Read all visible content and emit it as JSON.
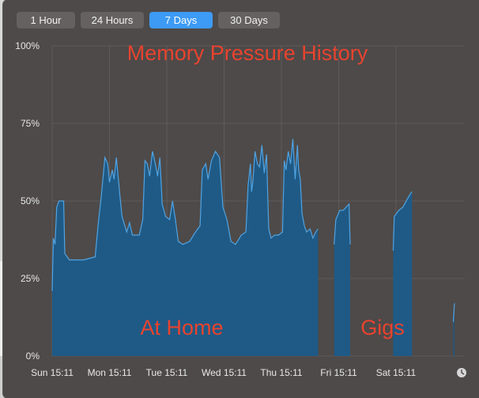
{
  "tabs": [
    {
      "label": "1 Hour",
      "active": false
    },
    {
      "label": "24 Hours",
      "active": false
    },
    {
      "label": "7 Days",
      "active": true
    },
    {
      "label": "30 Days",
      "active": false
    }
  ],
  "annotations": {
    "title": "Memory Pressure History",
    "at_home": "At Home",
    "gigs": "Gigs"
  },
  "colors": {
    "fill": "#1f5a86",
    "line": "#4fa3e3",
    "annotation": "#e8432f",
    "active_tab": "#3d9bf5",
    "background": "#4d4a49"
  },
  "clock_icon": "clock-icon",
  "chart_data": {
    "type": "area",
    "y_ticks": [
      "100%",
      "75%",
      "50%",
      "25%",
      "0%"
    ],
    "x_ticks": [
      "Sun 15:11",
      "Mon 15:11",
      "Tue 15:11",
      "Wed 15:11",
      "Thu 15:11",
      "Fri 15:11",
      "Sat 15:11"
    ],
    "ylim": [
      0,
      100
    ],
    "xlim_days": [
      0,
      7.2
    ],
    "grid": true,
    "series": [
      {
        "segments": [
          [
            [
              0.0,
              21
            ],
            [
              0.02,
              38
            ],
            [
              0.05,
              36
            ],
            [
              0.08,
              48
            ],
            [
              0.12,
              50
            ],
            [
              0.2,
              50
            ],
            [
              0.22,
              33
            ],
            [
              0.3,
              31
            ],
            [
              0.4,
              31
            ],
            [
              0.55,
              31
            ],
            [
              0.75,
              32
            ],
            [
              0.8,
              42
            ],
            [
              0.86,
              52
            ],
            [
              0.92,
              64
            ],
            [
              0.97,
              62
            ],
            [
              1.0,
              56
            ],
            [
              1.05,
              60
            ],
            [
              1.08,
              57
            ],
            [
              1.12,
              64
            ],
            [
              1.18,
              52
            ],
            [
              1.22,
              45
            ],
            [
              1.3,
              40
            ],
            [
              1.35,
              43
            ],
            [
              1.4,
              39
            ],
            [
              1.52,
              39
            ],
            [
              1.58,
              44
            ],
            [
              1.62,
              63
            ],
            [
              1.66,
              62
            ],
            [
              1.7,
              58
            ],
            [
              1.75,
              66
            ],
            [
              1.8,
              62
            ],
            [
              1.84,
              58
            ],
            [
              1.88,
              64
            ],
            [
              1.92,
              49
            ],
            [
              1.98,
              45
            ],
            [
              2.05,
              44
            ],
            [
              2.1,
              50
            ],
            [
              2.15,
              44
            ],
            [
              2.2,
              37
            ],
            [
              2.28,
              36
            ],
            [
              2.4,
              37
            ],
            [
              2.5,
              40
            ],
            [
              2.58,
              42
            ],
            [
              2.62,
              60
            ],
            [
              2.68,
              62
            ],
            [
              2.72,
              57
            ],
            [
              2.78,
              63
            ],
            [
              2.85,
              66
            ],
            [
              2.92,
              64
            ],
            [
              2.98,
              48
            ],
            [
              3.05,
              44
            ],
            [
              3.12,
              37
            ],
            [
              3.2,
              36
            ],
            [
              3.3,
              39
            ],
            [
              3.38,
              40
            ],
            [
              3.42,
              55
            ],
            [
              3.46,
              62
            ],
            [
              3.48,
              53
            ],
            [
              3.5,
              56
            ],
            [
              3.54,
              66
            ],
            [
              3.58,
              62
            ],
            [
              3.62,
              61
            ],
            [
              3.66,
              68
            ],
            [
              3.7,
              59
            ],
            [
              3.74,
              65
            ],
            [
              3.78,
              41
            ],
            [
              3.82,
              38
            ],
            [
              3.88,
              39
            ],
            [
              3.95,
              39
            ],
            [
              4.02,
              40
            ],
            [
              4.05,
              63
            ],
            [
              4.08,
              60
            ],
            [
              4.12,
              66
            ],
            [
              4.16,
              62
            ],
            [
              4.2,
              70
            ],
            [
              4.24,
              57
            ],
            [
              4.28,
              68
            ],
            [
              4.3,
              60
            ],
            [
              4.33,
              57
            ],
            [
              4.36,
              46
            ],
            [
              4.4,
              42
            ],
            [
              4.44,
              40
            ],
            [
              4.5,
              41
            ],
            [
              4.55,
              38
            ],
            [
              4.6,
              40
            ],
            [
              4.64,
              41
            ]
          ],
          [
            [
              4.92,
              36
            ],
            [
              4.95,
              44
            ],
            [
              5.02,
              47
            ],
            [
              5.08,
              47
            ],
            [
              5.13,
              48
            ],
            [
              5.18,
              49
            ],
            [
              5.2,
              36
            ]
          ],
          [
            [
              5.95,
              34
            ],
            [
              5.97,
              45
            ],
            [
              6.05,
              47
            ],
            [
              6.12,
              48
            ],
            [
              6.18,
              50
            ],
            [
              6.24,
              52
            ],
            [
              6.28,
              53
            ]
          ],
          [
            [
              7.0,
              11
            ],
            [
              7.02,
              17
            ]
          ]
        ]
      }
    ]
  }
}
